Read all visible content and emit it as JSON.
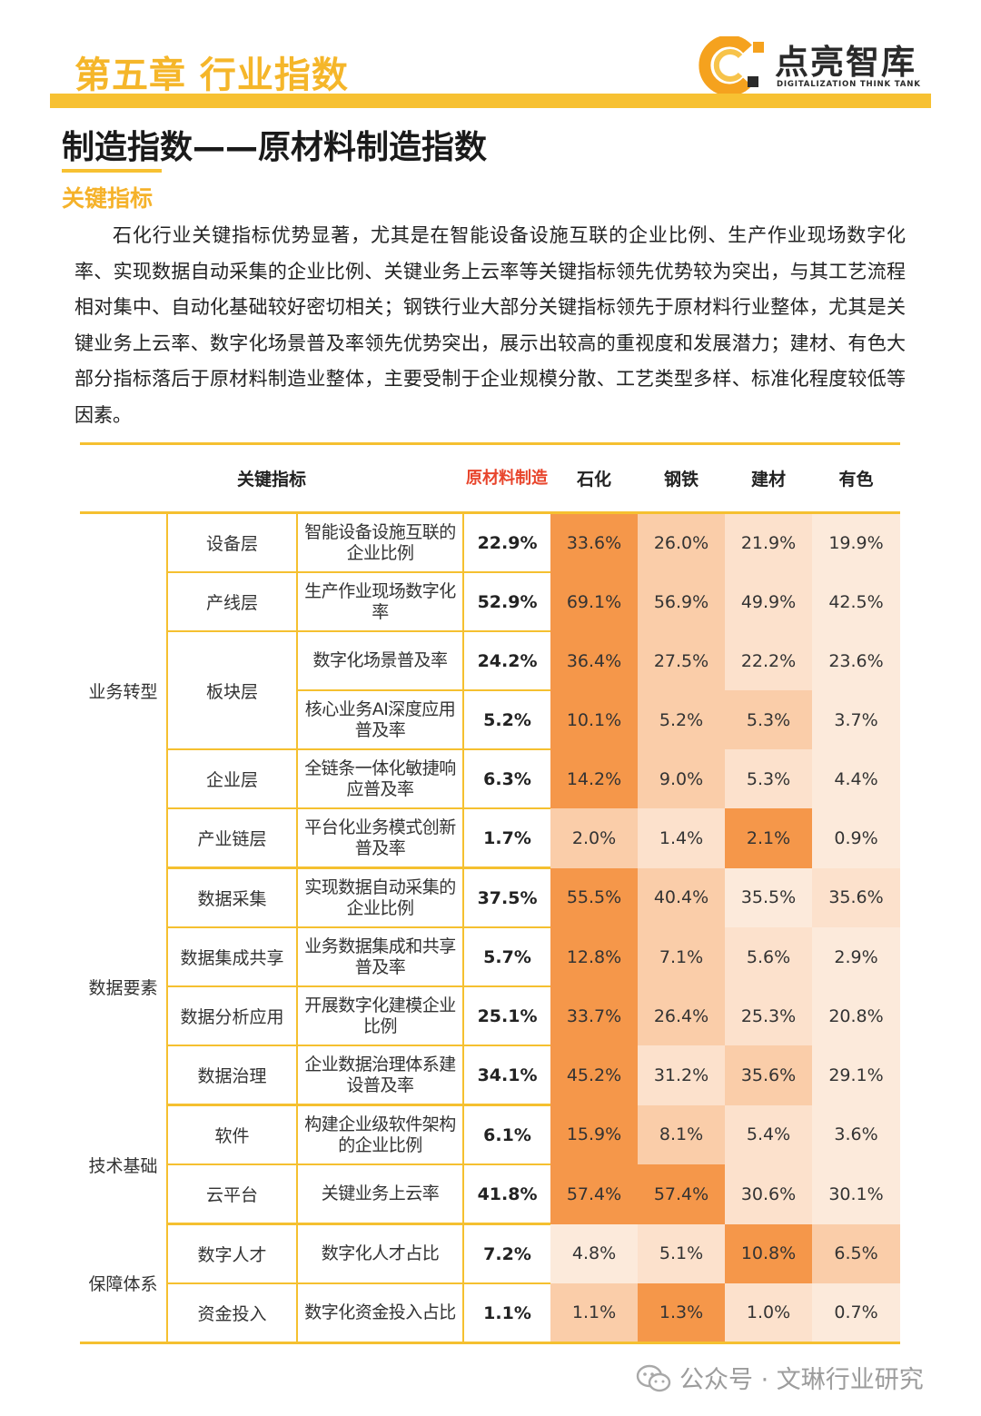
{
  "header": {
    "chapter": "第五章  行业指数",
    "logo_name": "点亮智库",
    "logo_sub": "DIGITALIZATION THINK TANK"
  },
  "section": {
    "title": "制造指数——原材料制造指数",
    "subtitle": "关键指标",
    "paragraph": "石化行业关键指标优势显著，尤其是在智能设备设施互联的企业比例、生产作业现场数字化率、实现数据自动采集的企业比例、关键业务上云率等关键指标领先优势较为突出，与其工艺流程相对集中、自动化基础较好密切相关；钢铁行业大部分关键指标领先于原材料行业整体，尤其是关键业务上云率、数字化场景普及率领先优势突出，展示出较高的重视度和发展潜力；建材、有色大部分指标落后于原材料制造业整体，主要受制于企业规模分散、工艺类型多样、标准化程度较低等因素。"
  },
  "table": {
    "headers": {
      "indicator": "关键指标",
      "overall": "原材料制造",
      "petro": "石化",
      "steel": "钢铁",
      "building": "建材",
      "nonferrous": "有色"
    },
    "dimensions": [
      "业务转型",
      "数据要素",
      "技术基础",
      "保障体系"
    ],
    "rows": [
      {
        "sub": "设备层",
        "indicator": "智能设备设施互联的企业比例",
        "values": [
          "22.9%",
          "33.6%",
          "26.0%",
          "21.9%",
          "19.9%"
        ]
      },
      {
        "sub": "产线层",
        "indicator": "生产作业现场数字化率",
        "values": [
          "52.9%",
          "69.1%",
          "56.9%",
          "49.9%",
          "42.5%"
        ]
      },
      {
        "sub": "板块层",
        "indicator": "数字化场景普及率",
        "values": [
          "24.2%",
          "36.4%",
          "27.5%",
          "22.2%",
          "23.6%"
        ]
      },
      {
        "sub": "",
        "indicator": "核心业务AI深度应用普及率",
        "values": [
          "5.2%",
          "10.1%",
          "5.2%",
          "5.3%",
          "3.7%"
        ]
      },
      {
        "sub": "企业层",
        "indicator": "全链条一体化敏捷响应普及率",
        "values": [
          "6.3%",
          "14.2%",
          "9.0%",
          "5.3%",
          "4.4%"
        ]
      },
      {
        "sub": "产业链层",
        "indicator": "平台化业务模式创新普及率",
        "values": [
          "1.7%",
          "2.0%",
          "1.4%",
          "2.1%",
          "0.9%"
        ]
      },
      {
        "sub": "数据采集",
        "indicator": "实现数据自动采集的企业比例",
        "values": [
          "37.5%",
          "55.5%",
          "40.4%",
          "35.5%",
          "35.6%"
        ]
      },
      {
        "sub": "数据集成共享",
        "indicator": "业务数据集成和共享普及率",
        "values": [
          "5.7%",
          "12.8%",
          "7.1%",
          "5.6%",
          "2.9%"
        ]
      },
      {
        "sub": "数据分析应用",
        "indicator": "开展数字化建模企业比例",
        "values": [
          "25.1%",
          "33.7%",
          "26.4%",
          "25.3%",
          "20.8%"
        ]
      },
      {
        "sub": "数据治理",
        "indicator": "企业数据治理体系建设普及率",
        "values": [
          "34.1%",
          "45.2%",
          "31.2%",
          "35.6%",
          "29.1%"
        ]
      },
      {
        "sub": "软件",
        "indicator": "构建企业级软件架构的企业比例",
        "values": [
          "6.1%",
          "15.9%",
          "8.1%",
          "5.4%",
          "3.6%"
        ]
      },
      {
        "sub": "云平台",
        "indicator": "关键业务上云率",
        "values": [
          "41.8%",
          "57.4%",
          "57.4%",
          "30.6%",
          "30.1%"
        ]
      },
      {
        "sub": "数字人才",
        "indicator": "数字化人才占比",
        "values": [
          "7.2%",
          "4.8%",
          "5.1%",
          "10.8%",
          "6.5%"
        ]
      },
      {
        "sub": "资金投入",
        "indicator": "数字化资金投入占比",
        "values": [
          "1.1%",
          "1.1%",
          "1.3%",
          "1.0%",
          "0.7%"
        ]
      }
    ],
    "heat_levels": [
      [
        1.0,
        0.4,
        0.18,
        0.08
      ],
      [
        1.0,
        0.4,
        0.18,
        0.08
      ],
      [
        1.0,
        0.4,
        0.18,
        0.08
      ],
      [
        1.0,
        0.4,
        0.4,
        0.08
      ],
      [
        1.0,
        0.4,
        0.18,
        0.08
      ],
      [
        0.4,
        0.18,
        1.0,
        0.08
      ],
      [
        1.0,
        0.4,
        0.08,
        0.18
      ],
      [
        1.0,
        0.4,
        0.18,
        0.08
      ],
      [
        1.0,
        0.4,
        0.18,
        0.08
      ],
      [
        1.0,
        0.18,
        0.4,
        0.08
      ],
      [
        1.0,
        0.4,
        0.18,
        0.08
      ],
      [
        1.0,
        1.0,
        0.18,
        0.08
      ],
      [
        0.08,
        0.18,
        1.0,
        0.4
      ],
      [
        0.4,
        1.0,
        0.18,
        0.08
      ]
    ],
    "colors": {
      "accent_yellow": "#f5c030",
      "heat_max": "#f5974a",
      "heat_min": "#fdf1e8",
      "overall_header": "#e8452c"
    }
  },
  "watermark": {
    "text": "公众号 · 文琳行业研究"
  }
}
